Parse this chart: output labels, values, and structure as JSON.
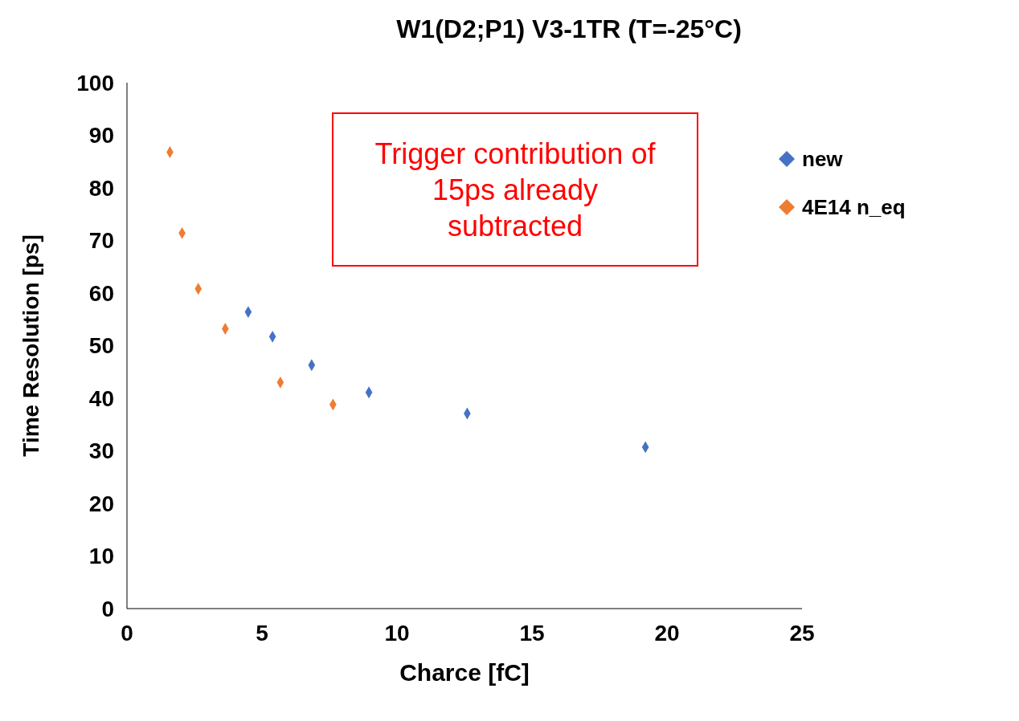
{
  "chart_data": {
    "type": "scatter",
    "title": "W1(D2;P1) V3-1TR (T=-25°C)",
    "xlabel": "Charce [fC]",
    "ylabel": "Time Resolution [ps]",
    "annotations": [
      "Trigger contribution of 15ps already subtracted"
    ],
    "xlim": [
      0,
      25
    ],
    "xticks": [
      0,
      5,
      10,
      15,
      20,
      25
    ],
    "ylim": [
      0,
      100
    ],
    "yticks": [
      0,
      10,
      20,
      30,
      40,
      50,
      60,
      70,
      80,
      90,
      100
    ],
    "grid": false,
    "legend": "top right",
    "marker": "diamond",
    "series": [
      {
        "name": "new",
        "color": "#4472c4",
        "x": [
          4.49,
          5.39,
          6.84,
          8.96,
          12.6,
          19.2
        ],
        "values": [
          56.4,
          51.7,
          46.3,
          41.1,
          37.1,
          30.7
        ]
      },
      {
        "name": "4E14 n_eq",
        "color": "#ed7d31",
        "x": [
          1.59,
          2.04,
          2.64,
          3.64,
          5.68,
          7.63
        ],
        "values": [
          86.8,
          71.4,
          60.8,
          53.2,
          43.0,
          38.8
        ]
      }
    ]
  }
}
